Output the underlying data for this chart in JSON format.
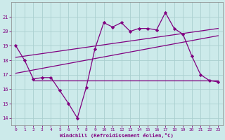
{
  "x": [
    0,
    1,
    2,
    3,
    4,
    5,
    6,
    7,
    8,
    9,
    10,
    11,
    12,
    13,
    14,
    15,
    16,
    17,
    18,
    19,
    20,
    21,
    22,
    23
  ],
  "y_main": [
    19.0,
    18.0,
    16.7,
    16.8,
    16.8,
    15.9,
    15.0,
    14.0,
    16.1,
    18.8,
    20.6,
    20.3,
    20.6,
    20.0,
    20.2,
    20.2,
    20.1,
    21.3,
    20.2,
    19.8,
    18.3,
    17.0,
    16.6,
    16.5
  ],
  "trend1_x": [
    0,
    23
  ],
  "trend1_y": [
    18.2,
    20.2
  ],
  "trend2_x": [
    0,
    23
  ],
  "trend2_y": [
    17.1,
    19.7
  ],
  "trend3_x": [
    2,
    23
  ],
  "trend3_y": [
    16.6,
    16.6
  ],
  "line_color": "#800080",
  "bg_color": "#cceaea",
  "grid_color": "#aacfcf",
  "xlabel": "Windchill (Refroidissement éolien,°C)",
  "xlim": [
    -0.5,
    23.5
  ],
  "ylim": [
    13.5,
    22.0
  ],
  "yticks": [
    14,
    15,
    16,
    17,
    18,
    19,
    20,
    21
  ],
  "xticks": [
    0,
    1,
    2,
    3,
    4,
    5,
    6,
    7,
    8,
    9,
    10,
    11,
    12,
    13,
    14,
    15,
    16,
    17,
    18,
    19,
    20,
    21,
    22,
    23
  ]
}
